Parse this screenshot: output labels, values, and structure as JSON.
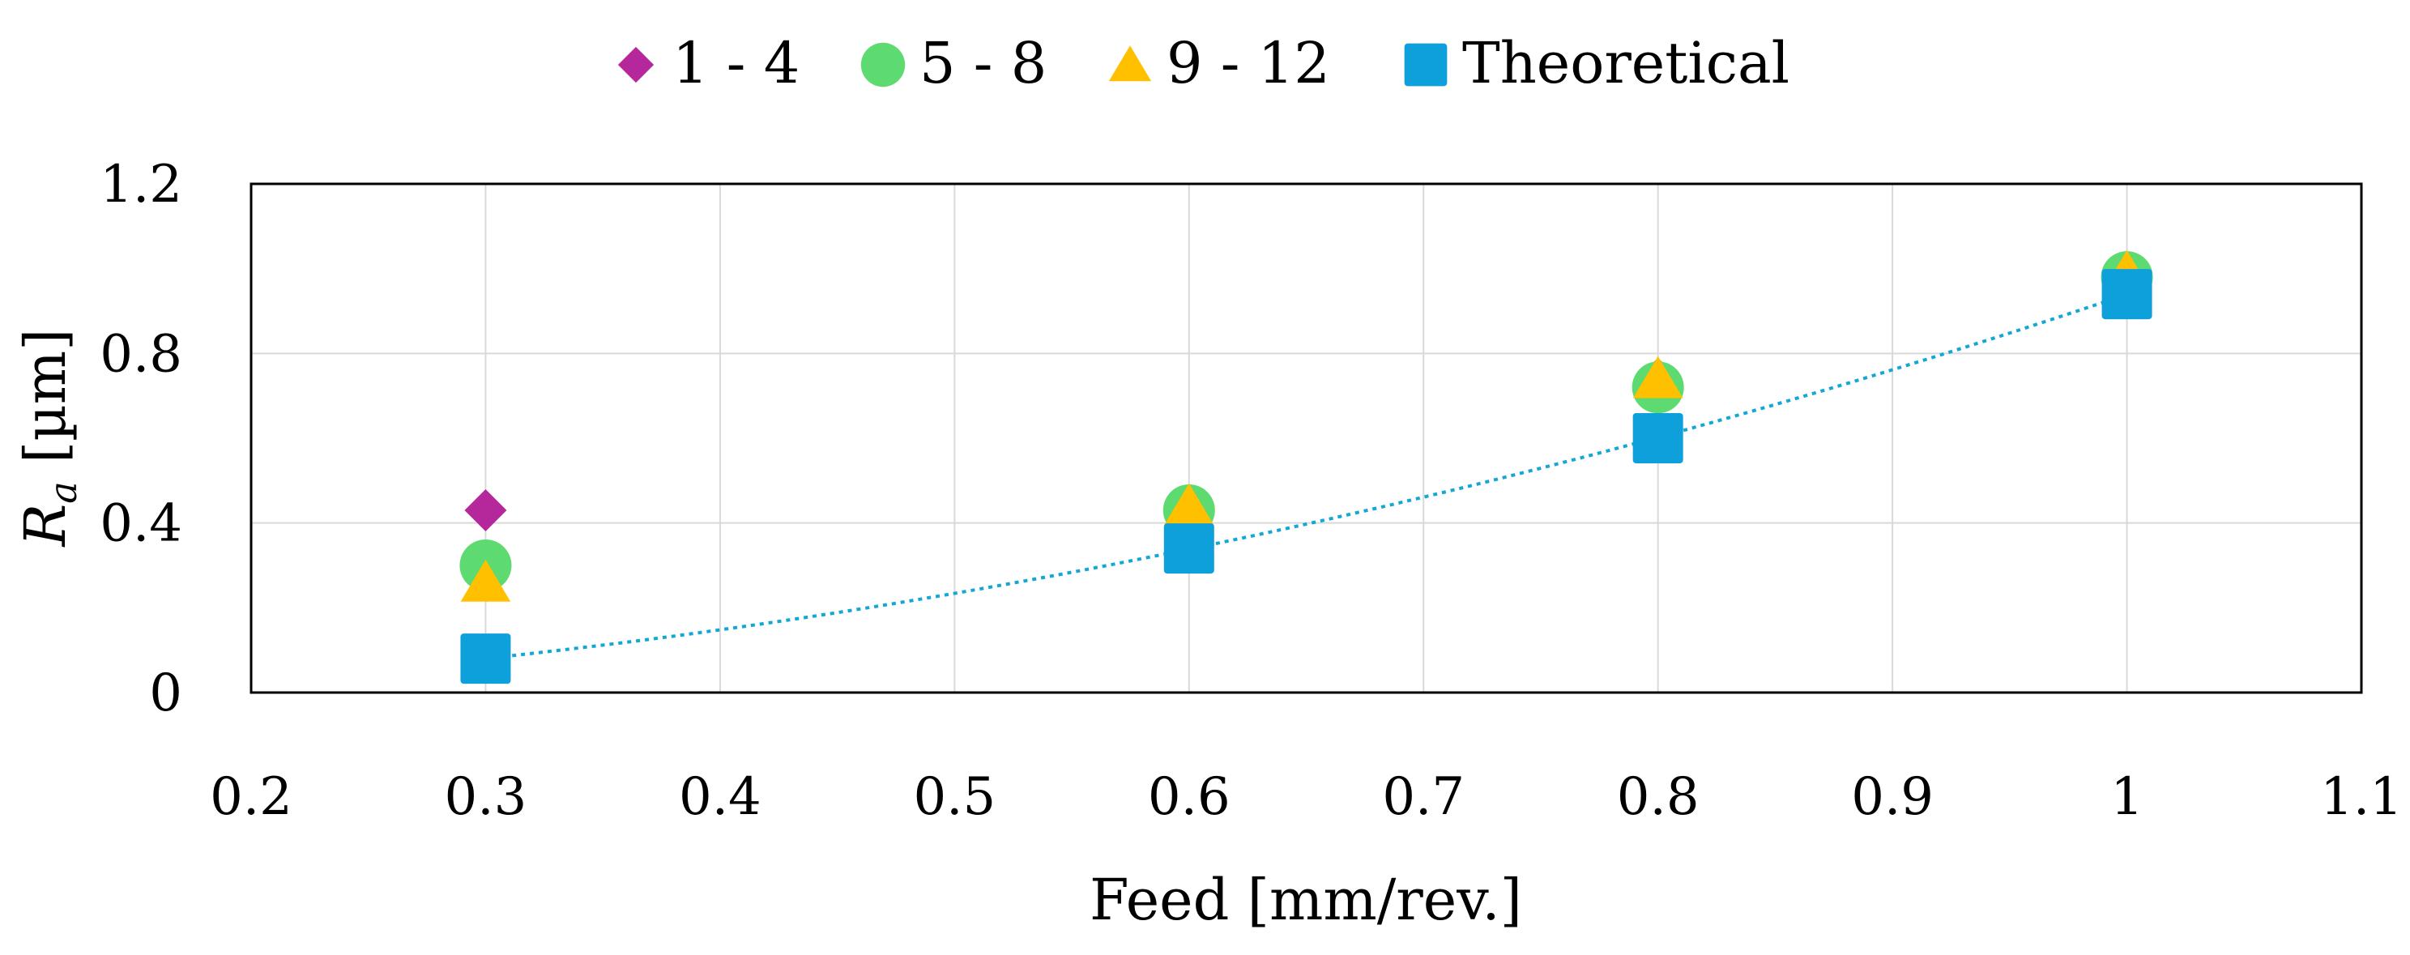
{
  "chart_data": {
    "type": "scatter",
    "xlabel": "Feed [mm/rev.]",
    "ylabel": {
      "main": "R",
      "sub": "a",
      "unit": " [µm]"
    },
    "xlim": [
      0.2,
      1.1
    ],
    "ylim": [
      0,
      1.2
    ],
    "x_ticks": [
      "0.2",
      "0.3",
      "0.4",
      "0.5",
      "0.6",
      "0.7",
      "0.8",
      "0.9",
      "1",
      "1.1"
    ],
    "y_ticks": [
      "0",
      "0.4",
      "0.8",
      "1.2"
    ],
    "grid": true,
    "legend": "top",
    "series": [
      {
        "name": "1 - 4",
        "marker": "diamond",
        "color": "#B4289C",
        "x": [
          0.3,
          0.6,
          0.8,
          1.0
        ],
        "y": [
          0.43,
          0.44,
          0.74,
          0.93
        ]
      },
      {
        "name": "5 - 8",
        "marker": "circle",
        "color": "#5EDB70",
        "x": [
          0.3,
          0.6,
          0.8,
          1.0
        ],
        "y": [
          0.3,
          0.43,
          0.72,
          0.98
        ]
      },
      {
        "name": "9 - 12",
        "marker": "triangle",
        "color": "#FFC000",
        "x": [
          0.3,
          0.6,
          0.8,
          1.0
        ],
        "y": [
          0.26,
          0.44,
          0.74,
          0.99
        ]
      },
      {
        "name": "Theoretical",
        "marker": "square",
        "color": "#0EA0DA",
        "x": [
          0.3,
          0.6,
          0.8,
          1.0
        ],
        "y": [
          0.08,
          0.34,
          0.6,
          0.94
        ],
        "trendline": "dotted"
      }
    ]
  }
}
